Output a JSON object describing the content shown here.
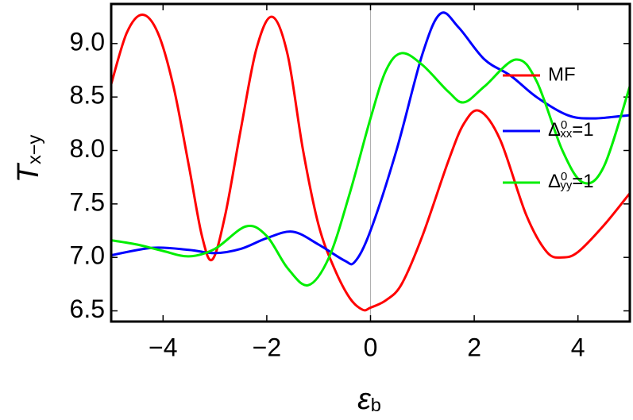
{
  "chart_data": {
    "type": "line",
    "x_label": "ε_b",
    "y_label": "T_x−y",
    "xlim": [
      -5,
      5
    ],
    "ylim": [
      6.4,
      9.37
    ],
    "xticks": [
      {
        "value": -4,
        "label": "−4"
      },
      {
        "value": -2,
        "label": "−2"
      },
      0,
      2,
      4
    ],
    "yticks": [
      {
        "value": 6.5,
        "label": "6.5"
      },
      {
        "value": 7.0,
        "label": "7.0"
      },
      {
        "value": 7.5,
        "label": "7.5"
      },
      {
        "value": 8.0,
        "label": "8.0"
      },
      {
        "value": 8.5,
        "label": "8.5"
      },
      {
        "value": 9.0,
        "label": "9.0"
      }
    ],
    "legend": "right",
    "series": [
      {
        "name": "MF",
        "color": "#ff0000",
        "x": [
          -5,
          -4.7,
          -4.4,
          -4.1,
          -3.8,
          -3.5,
          -3.25,
          -3.05,
          -2.8,
          -2.5,
          -2.2,
          -1.9,
          -1.6,
          -1.3,
          -1.0,
          -0.7,
          -0.4,
          -0.15,
          0,
          0.3,
          0.6,
          1.0,
          1.5,
          1.8,
          2.1,
          2.5,
          3.0,
          3.4,
          3.7,
          4.0,
          4.5,
          5
        ],
        "values": [
          8.62,
          9.1,
          9.27,
          9.1,
          8.6,
          7.85,
          7.2,
          6.98,
          7.4,
          8.2,
          8.95,
          9.25,
          8.9,
          8.0,
          7.3,
          6.9,
          6.62,
          6.51,
          6.53,
          6.6,
          6.75,
          7.2,
          7.9,
          8.25,
          8.37,
          8.1,
          7.4,
          7.05,
          7.0,
          7.05,
          7.3,
          7.6
        ]
      },
      {
        "name": "Δ^0_xx=1",
        "color": "#0000ff",
        "x": [
          -5,
          -4.2,
          -3.5,
          -3.0,
          -2.5,
          -2.0,
          -1.5,
          -1.0,
          -0.5,
          -0.3,
          0,
          0.5,
          1.0,
          1.35,
          1.7,
          2.2,
          2.7,
          3.2,
          3.8,
          4.3,
          5
        ],
        "values": [
          7.02,
          7.09,
          7.07,
          7.04,
          7.08,
          7.18,
          7.24,
          7.12,
          6.97,
          6.96,
          7.25,
          8.0,
          8.9,
          9.28,
          9.15,
          8.85,
          8.7,
          8.5,
          8.33,
          8.3,
          8.33
        ]
      },
      {
        "name": "Δ^0_yy=1",
        "color": "#00ee00",
        "x": [
          -5,
          -4.5,
          -4.0,
          -3.5,
          -3.0,
          -2.4,
          -2.0,
          -1.6,
          -1.2,
          -0.8,
          -0.4,
          0,
          0.3,
          0.6,
          1.0,
          1.5,
          1.8,
          2.2,
          2.8,
          3.2,
          3.7,
          4.1,
          4.5,
          5
        ],
        "values": [
          7.16,
          7.12,
          7.06,
          7.01,
          7.08,
          7.29,
          7.2,
          6.9,
          6.74,
          7.0,
          7.6,
          8.3,
          8.75,
          8.91,
          8.8,
          8.55,
          8.45,
          8.6,
          8.85,
          8.65,
          8.0,
          7.7,
          7.85,
          8.6
        ]
      }
    ]
  }
}
